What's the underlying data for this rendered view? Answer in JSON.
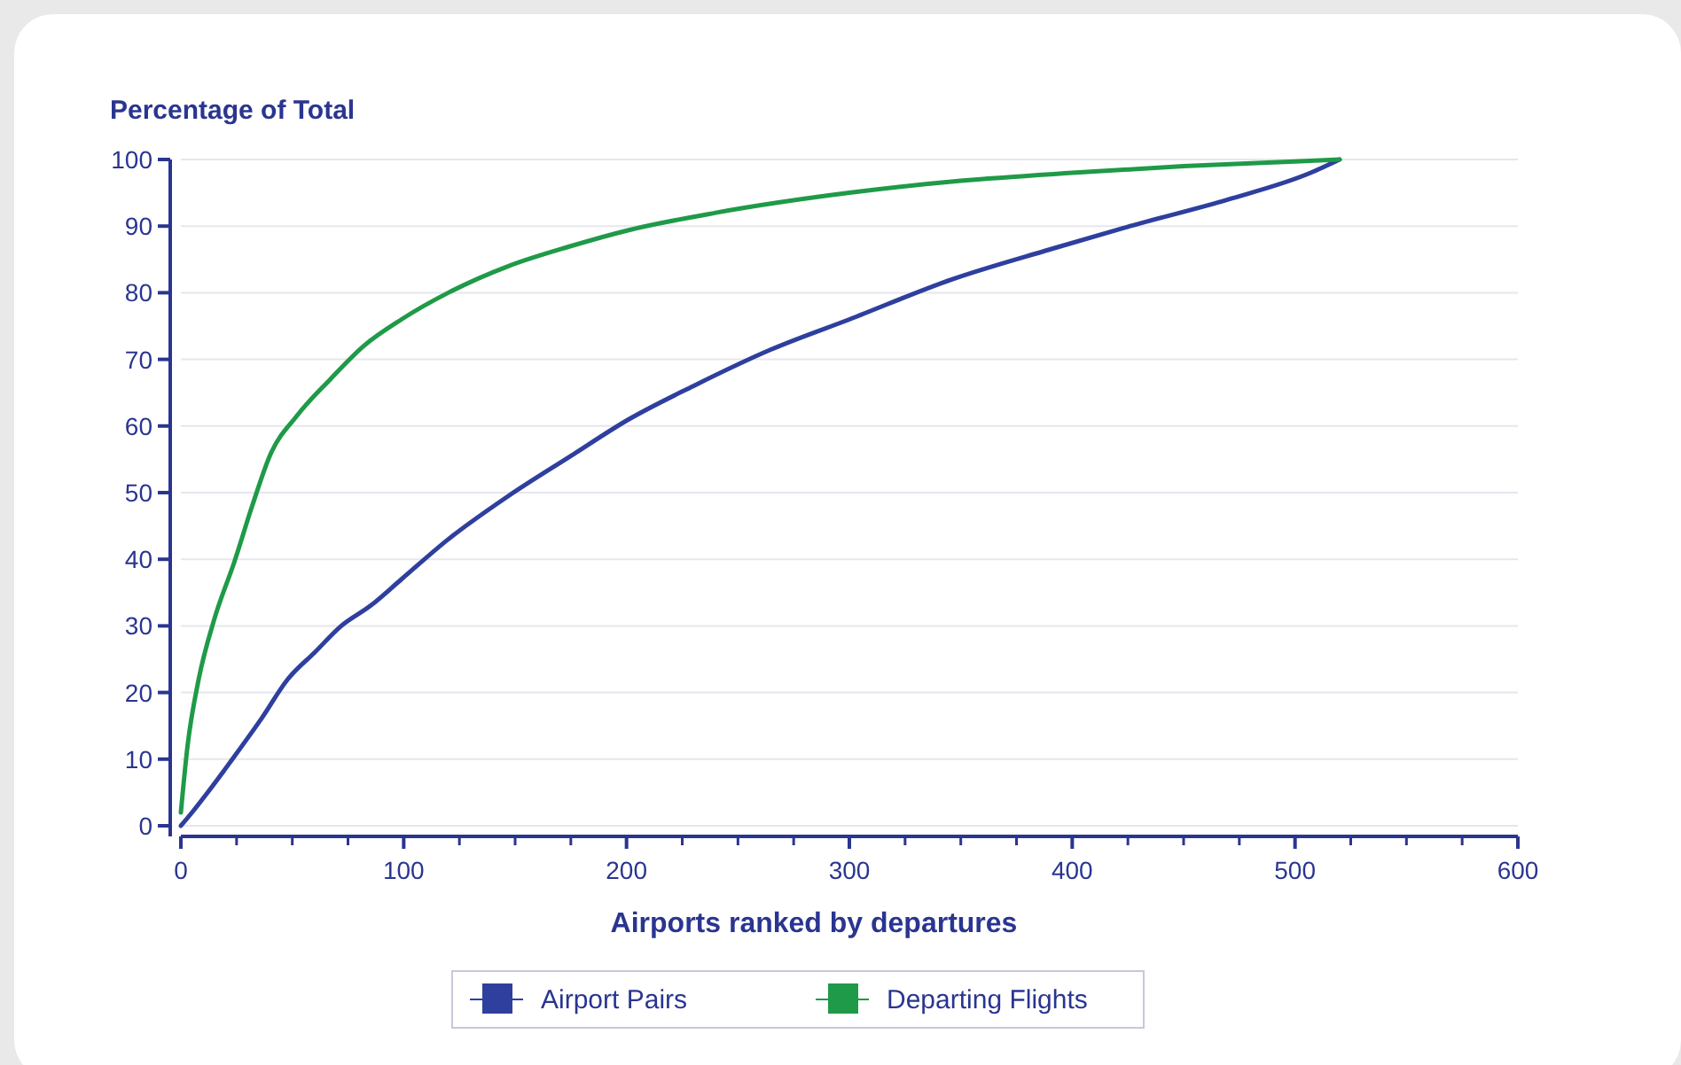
{
  "chart_data": {
    "type": "line",
    "xlabel": "Airports ranked by departures",
    "ylabel": "Percentage of Total",
    "xlim": [
      0,
      600
    ],
    "ylim": [
      0,
      100
    ],
    "xticks": [
      0,
      100,
      200,
      300,
      400,
      500,
      600
    ],
    "yticks": [
      0,
      10,
      20,
      30,
      40,
      50,
      60,
      70,
      80,
      90,
      100
    ],
    "grid": "y",
    "legend": "bottom",
    "marker": "none",
    "line_style": "solid",
    "series": [
      {
        "name": "Airport Pairs",
        "color": "#2e3f9e",
        "x": [
          0,
          5,
          12,
          24,
          36,
          48,
          60,
          72,
          85,
          99,
          120,
          147,
          175,
          201,
          230,
          265,
          300,
          346,
          390,
          426,
          470,
          507,
          520
        ],
        "values": [
          0,
          2,
          5,
          10.4,
          16,
          22,
          26,
          30,
          33,
          37,
          43,
          49.5,
          55.5,
          61,
          66,
          71.5,
          76,
          82,
          86.5,
          90,
          94,
          98,
          100
        ]
      },
      {
        "name": "Departing Flights",
        "color": "#1f9a48",
        "x": [
          0,
          3,
          8,
          15,
          24,
          32,
          40,
          52,
          67,
          82,
          99,
          120,
          147,
          175,
          201,
          240,
          300,
          350,
          400,
          450,
          500,
          520
        ],
        "values": [
          2,
          12,
          22,
          31,
          39.6,
          48,
          55.6,
          61.5,
          67,
          72,
          76,
          80,
          84,
          87,
          89.4,
          92,
          95,
          96.8,
          98,
          99,
          99.7,
          100
        ]
      }
    ]
  }
}
